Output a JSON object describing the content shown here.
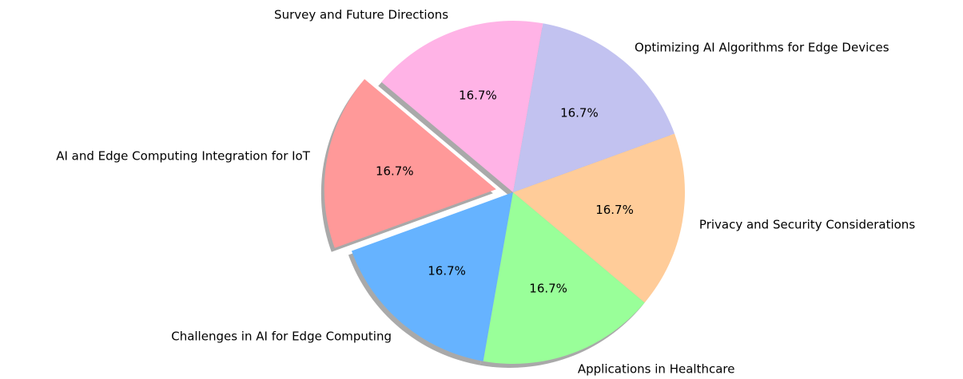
{
  "chart_data": {
    "type": "pie",
    "categories": [
      "AI and Edge Computing Integration for IoT",
      "Challenges in AI for Edge Computing",
      "Applications in Healthcare",
      "Privacy and Security Considerations",
      "Optimizing AI Algorithms for Edge Devices",
      "Survey and Future Directions"
    ],
    "values": [
      16.7,
      16.7,
      16.7,
      16.7,
      16.7,
      16.7
    ],
    "value_labels": [
      "16.7%",
      "16.7%",
      "16.7%",
      "16.7%",
      "16.7%",
      "16.7%"
    ],
    "colors": [
      "#ff9999",
      "#66b3ff",
      "#99ff99",
      "#ffcc99",
      "#c2c2f0",
      "#ffb3e6"
    ],
    "shadow": true
  }
}
